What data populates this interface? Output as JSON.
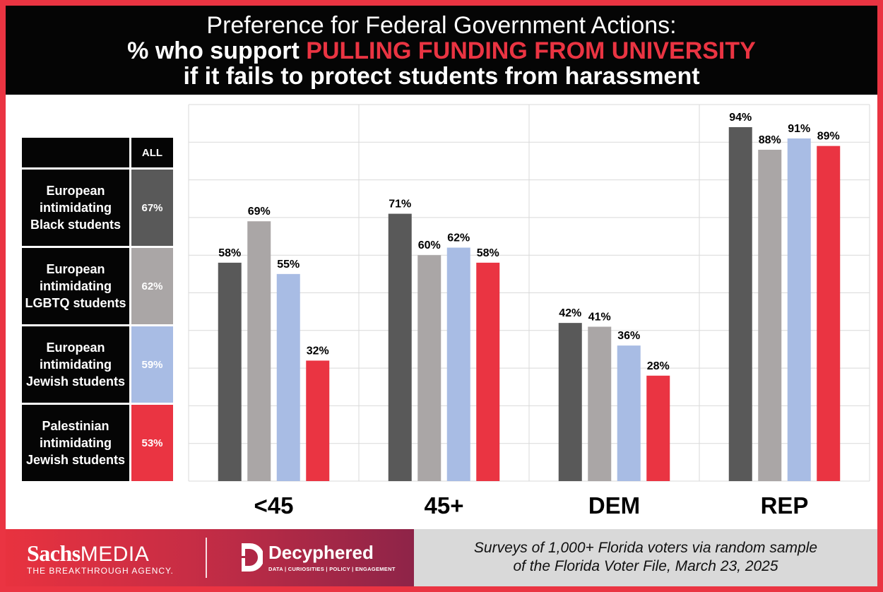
{
  "title": {
    "line1": "Preference for Federal Government Actions:",
    "line2_prefix": "% who support ",
    "line2_highlight": "PULLING FUNDING FROM UNIVERSITY",
    "line3": "if it fails to protect students from harassment"
  },
  "legend": {
    "header_all": "ALL",
    "rows": [
      {
        "label": "European intimidating Black students",
        "value": "67%",
        "color": "#595959"
      },
      {
        "label": "European intimidating LGBTQ students",
        "value": "62%",
        "color": "#aaa6a6"
      },
      {
        "label": "European intimidating Jewish students",
        "value": "59%",
        "color": "#a8bce4"
      },
      {
        "label": "Palestinian intimidating Jewish students",
        "value": "53%",
        "color": "#ea3442"
      }
    ]
  },
  "chart_data": {
    "type": "bar",
    "categories": [
      "<45",
      "45+",
      "DEM",
      "REP"
    ],
    "series": [
      {
        "name": "European intimidating Black students",
        "values": [
          58,
          71,
          42,
          94
        ],
        "color": "#595959"
      },
      {
        "name": "European intimidating LGBTQ students",
        "values": [
          69,
          60,
          41,
          88
        ],
        "color": "#aaa6a6"
      },
      {
        "name": "European intimidating Jewish students",
        "values": [
          55,
          62,
          36,
          91
        ],
        "color": "#a8bce4"
      },
      {
        "name": "Palestinian intimidating Jewish students",
        "values": [
          32,
          58,
          28,
          89
        ],
        "color": "#ea3442"
      }
    ],
    "value_suffix": "%",
    "ylim": [
      0,
      100
    ],
    "grid": true,
    "legend": "left"
  },
  "footer": {
    "brand_sachs": "Sachs",
    "brand_media": "MEDIA",
    "brand_tagline": "THE BREAKTHROUGH AGENCY.",
    "partner_name": "Decyphered",
    "partner_tagline": "DATA | CURIOSITIES | POLICY | ENGAGEMENT",
    "source_line1": "Surveys of  1,000+ Florida voters via random sample",
    "source_line2": "of  the Florida Voter File, March 23, 2025"
  }
}
